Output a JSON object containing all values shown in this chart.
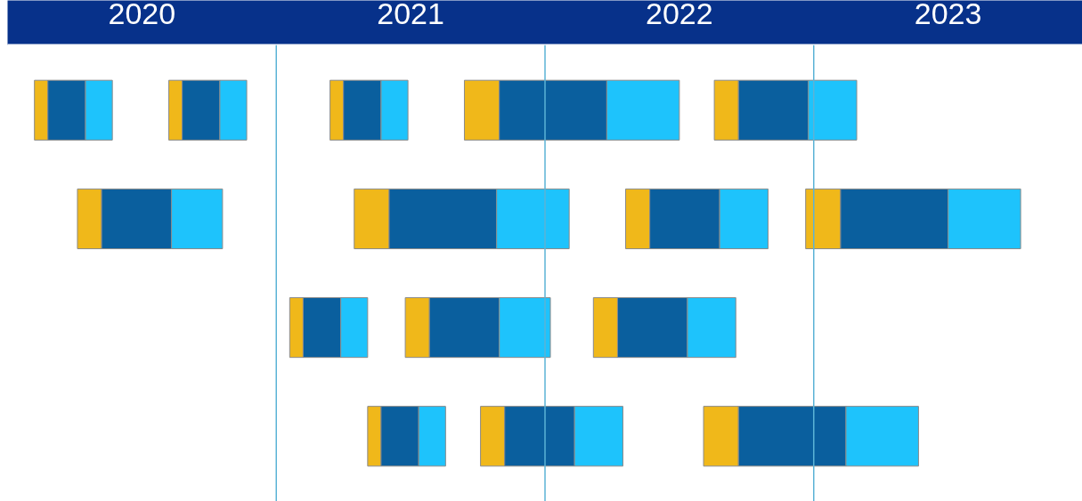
{
  "chart_data": {
    "type": "bar",
    "orientation": "horizontal",
    "categories": [
      null,
      null,
      null,
      null
    ],
    "xlim": [
      2020,
      2024
    ],
    "xticks": [
      {
        "value": 2020.5,
        "label": "2020"
      },
      {
        "value": 2021.5,
        "label": "2021"
      },
      {
        "value": 2022.5,
        "label": "2022"
      },
      {
        "value": 2023.5,
        "label": "2023"
      }
    ],
    "tick_labels": "x",
    "grid": false,
    "ref_lines": [
      {
        "axis": "x",
        "value": 2021,
        "color": "#5bb3d6"
      },
      {
        "axis": "x",
        "value": 2022,
        "color": "#5bb3d6"
      },
      {
        "axis": "x",
        "value": 2023,
        "color": "#5bb3d6"
      }
    ],
    "series": [
      {
        "color": "#f0b81a",
        "base": [
          2020.1,
          2020.26,
          2021.05,
          2021.34
        ],
        "values": [
          0.05,
          0.09,
          0.05,
          0.05
        ]
      },
      {
        "color": "#0a5f9e",
        "base": [
          2020.15,
          2020.35,
          2021.1,
          2021.39
        ],
        "values": [
          0.14,
          0.26,
          0.14,
          0.14
        ]
      },
      {
        "color": "#1ec3fc",
        "base": [
          2020.29,
          2020.61,
          2021.24,
          2021.53
        ],
        "values": [
          0.1,
          0.19,
          0.1,
          0.1
        ]
      },
      {
        "color": "#f0b81a",
        "base": [
          2020.6,
          2021.29,
          2021.48,
          2021.76
        ],
        "values": [
          0.05,
          0.13,
          0.09,
          0.09
        ]
      },
      {
        "color": "#0a5f9e",
        "base": [
          2020.65,
          2021.42,
          2021.57,
          2021.85
        ],
        "values": [
          0.14,
          0.4,
          0.26,
          0.26
        ]
      },
      {
        "color": "#1ec3fc",
        "base": [
          2020.79,
          2021.82,
          2021.83,
          2022.11
        ],
        "values": [
          0.1,
          0.27,
          0.19,
          0.18
        ]
      },
      {
        "color": "#f0b81a",
        "base": [
          2021.2,
          2022.3,
          2022.18,
          2022.59
        ],
        "values": [
          0.05,
          0.09,
          0.09,
          0.13
        ]
      },
      {
        "color": "#0a5f9e",
        "base": [
          2021.25,
          2022.39,
          2022.27,
          2022.72
        ],
        "values": [
          0.14,
          0.26,
          0.26,
          0.4
        ]
      },
      {
        "color": "#1ec3fc",
        "base": [
          2021.39,
          2022.65,
          2022.53,
          2023.12
        ],
        "values": [
          0.1,
          0.18,
          0.18,
          0.27
        ]
      },
      {
        "color": "#f0b81a",
        "base": [
          2021.7,
          2022.97,
          null,
          null
        ],
        "values": [
          0.13,
          0.13,
          null,
          null
        ]
      },
      {
        "color": "#0a5f9e",
        "base": [
          2021.83,
          2023.1,
          null,
          null
        ],
        "values": [
          0.4,
          0.4,
          null,
          null
        ]
      },
      {
        "color": "#1ec3fc",
        "base": [
          2022.23,
          2023.5,
          null,
          null
        ],
        "values": [
          0.27,
          0.27,
          null,
          null
        ]
      },
      {
        "color": "#f0b81a",
        "base": [
          2022.63,
          null,
          null,
          null
        ],
        "values": [
          0.09,
          null,
          null,
          null
        ]
      },
      {
        "color": "#0a5f9e",
        "base": [
          2022.72,
          null,
          null,
          null
        ],
        "values": [
          0.26,
          null,
          null,
          null
        ]
      },
      {
        "color": "#1ec3fc",
        "base": [
          2022.98,
          null,
          null,
          null
        ],
        "values": [
          0.18,
          null,
          null,
          null
        ]
      }
    ]
  }
}
